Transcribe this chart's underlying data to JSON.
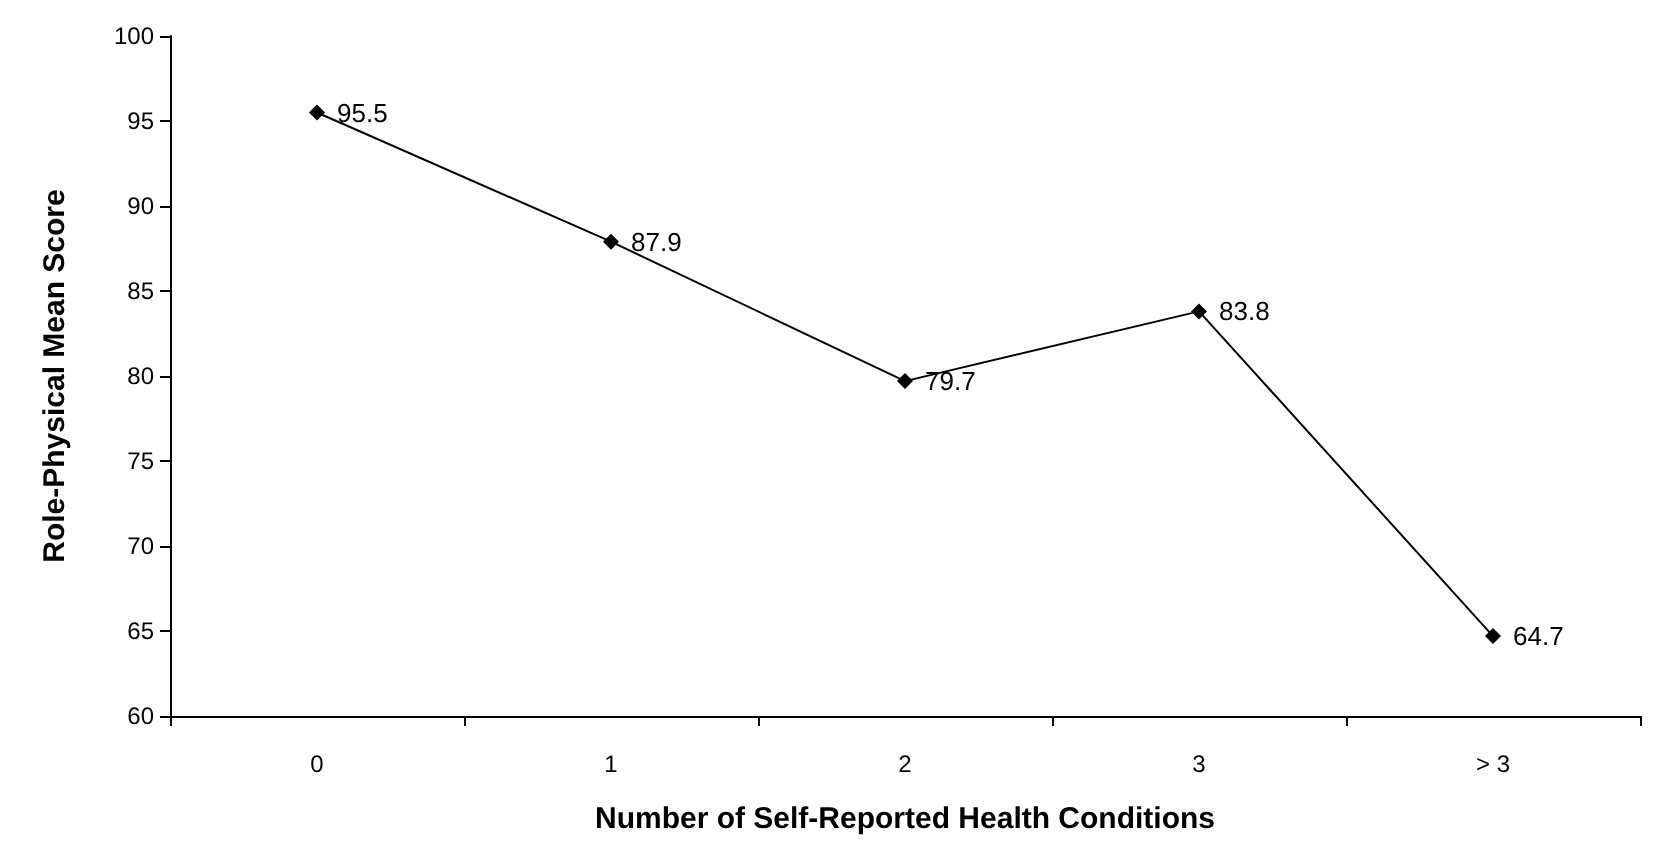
{
  "chart_data": {
    "type": "line",
    "xlabel": "Number of Self-Reported Health Conditions",
    "ylabel": "Role-Physical Mean Score",
    "categories": [
      "0",
      "1",
      "2",
      "3",
      "> 3"
    ],
    "series": [
      {
        "color": "#000000",
        "values": [
          95.5,
          87.9,
          79.7,
          83.8,
          64.7
        ]
      }
    ],
    "ylim": [
      60,
      100
    ],
    "yticks": [
      60,
      65,
      70,
      75,
      80,
      85,
      90,
      95,
      100
    ],
    "grid": false,
    "marker": "diamond",
    "line_style": "solid",
    "data_labels": true
  }
}
